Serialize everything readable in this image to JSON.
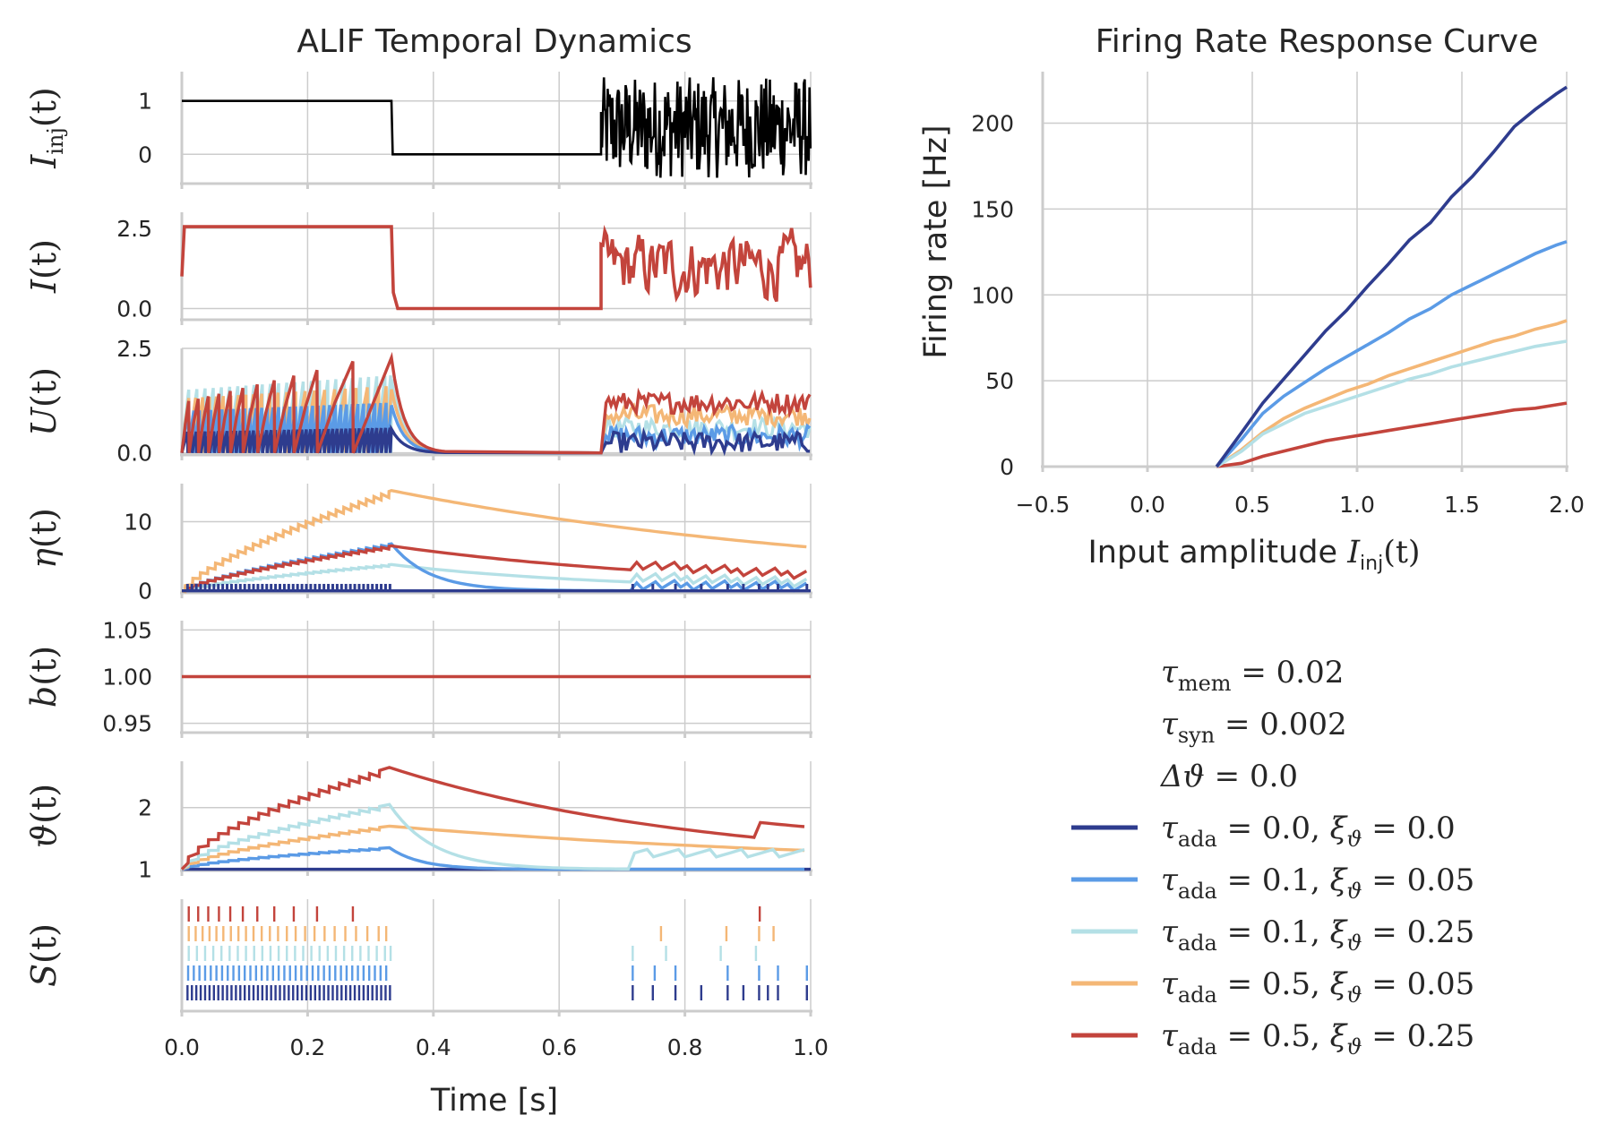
{
  "colors": {
    "c0": "#2e3c8e",
    "c1": "#5b9be6",
    "c2": "#b4e0e6",
    "c3": "#f4b776",
    "c4": "#c3443c",
    "input": "#000000",
    "grid": "#cccccc",
    "text": "#262626"
  },
  "chart_data": [
    {
      "type": "line",
      "title": "ALIF Temporal Dynamics",
      "xlabel": "Time [s]",
      "xlim": [
        0.0,
        1.0
      ],
      "xticks": [
        "0.0",
        "0.2",
        "0.4",
        "0.6",
        "0.8",
        "1.0"
      ],
      "panels": [
        {
          "ylabel": "I_inj(t)",
          "ylabel_main": "I",
          "ylabel_sub": "inj",
          "ylabel_tail": "(t)",
          "ylim": [
            -0.55,
            1.55
          ],
          "yticks": [
            1,
            0
          ],
          "ytick_labels": [
            "1",
            "0"
          ],
          "description": "step input 1 for t<1/3, 0 until 2/3, then noisy input"
        },
        {
          "ylabel": "I(t)",
          "ylabel_main": "I",
          "ylabel_sub": "",
          "ylabel_tail": "(t)",
          "ylim": [
            -0.35,
            3.0
          ],
          "yticks": [
            2.5,
            0.0
          ],
          "ytick_labels": [
            "2.5",
            "0.0"
          ],
          "description": "synaptic current following the input"
        },
        {
          "ylabel": "U(t)",
          "ylabel_main": "U",
          "ylabel_sub": "",
          "ylabel_tail": "(t)",
          "ylim": [
            -0.05,
            2.5
          ],
          "yticks": [
            2.5,
            0.0
          ],
          "ytick_labels": [
            "2.5",
            "0.0"
          ],
          "description": "membrane potential traces"
        },
        {
          "ylabel": "η(t)",
          "ylabel_main": "η",
          "ylabel_sub": "",
          "ylabel_tail": "(t)",
          "ylim": [
            -0.3,
            15.5
          ],
          "yticks": [
            10,
            0
          ],
          "ytick_labels": [
            "10",
            "0"
          ],
          "description": "adaptation variable traces"
        },
        {
          "ylabel": "b(t)",
          "ylabel_main": "b",
          "ylabel_sub": "",
          "ylabel_tail": "(t)",
          "ylim": [
            0.94,
            1.06
          ],
          "yticks": [
            1.05,
            1.0,
            0.95
          ],
          "ytick_labels": [
            "1.05",
            "1.00",
            "0.95"
          ],
          "description": "constant 1.00"
        },
        {
          "ylabel": "ϑ(t)",
          "ylabel_main": "ϑ",
          "ylabel_sub": "",
          "ylabel_tail": "(t)",
          "ylim": [
            0.98,
            2.75
          ],
          "yticks": [
            2,
            1
          ],
          "ytick_labels": [
            "2",
            "1"
          ],
          "description": "adaptive threshold traces"
        },
        {
          "ylabel": "S(t)",
          "ylabel_main": "S",
          "ylabel_sub": "",
          "ylabel_tail": "(t)",
          "yticks": [],
          "ytick_labels": [],
          "description": "spike raster, one row per configuration"
        }
      ],
      "spikes": [
        {
          "name": "c0",
          "times": [
            0.009,
            0.016,
            0.023,
            0.03,
            0.037,
            0.044,
            0.051,
            0.058,
            0.065,
            0.072,
            0.079,
            0.086,
            0.093,
            0.1,
            0.107,
            0.114,
            0.121,
            0.128,
            0.135,
            0.142,
            0.149,
            0.156,
            0.163,
            0.17,
            0.177,
            0.184,
            0.191,
            0.198,
            0.205,
            0.212,
            0.219,
            0.226,
            0.233,
            0.24,
            0.247,
            0.254,
            0.261,
            0.268,
            0.275,
            0.282,
            0.289,
            0.296,
            0.303,
            0.31,
            0.317,
            0.324,
            0.331,
            0.717,
            0.749,
            0.785,
            0.826,
            0.868,
            0.893,
            0.918,
            0.932,
            0.948,
            0.994
          ]
        },
        {
          "name": "c1",
          "times": [
            0.01,
            0.019,
            0.028,
            0.037,
            0.046,
            0.055,
            0.064,
            0.073,
            0.082,
            0.091,
            0.1,
            0.109,
            0.118,
            0.127,
            0.136,
            0.145,
            0.154,
            0.163,
            0.172,
            0.181,
            0.19,
            0.199,
            0.208,
            0.217,
            0.226,
            0.235,
            0.244,
            0.253,
            0.262,
            0.271,
            0.28,
            0.289,
            0.298,
            0.307,
            0.316,
            0.325,
            0.717,
            0.752,
            0.785,
            0.868,
            0.918,
            0.948,
            0.994
          ]
        },
        {
          "name": "c2",
          "times": [
            0.011,
            0.024,
            0.037,
            0.05,
            0.063,
            0.076,
            0.089,
            0.102,
            0.115,
            0.128,
            0.141,
            0.154,
            0.167,
            0.18,
            0.193,
            0.206,
            0.219,
            0.232,
            0.245,
            0.258,
            0.271,
            0.284,
            0.297,
            0.31,
            0.323,
            0.332,
            0.717,
            0.77,
            0.857,
            0.913
          ]
        },
        {
          "name": "c3",
          "times": [
            0.011,
            0.022,
            0.033,
            0.044,
            0.055,
            0.066,
            0.078,
            0.09,
            0.102,
            0.114,
            0.127,
            0.14,
            0.153,
            0.167,
            0.181,
            0.196,
            0.211,
            0.227,
            0.243,
            0.26,
            0.277,
            0.295,
            0.313,
            0.325,
            0.762,
            0.866,
            0.918,
            0.941
          ]
        },
        {
          "name": "c4",
          "times": [
            0.011,
            0.026,
            0.042,
            0.059,
            0.077,
            0.097,
            0.12,
            0.147,
            0.178,
            0.215,
            0.272,
            0.919
          ]
        }
      ],
      "input_steps": [
        {
          "t_start": 0.0,
          "t_end": 0.333,
          "value": 1
        },
        {
          "t_start": 0.333,
          "t_end": 0.667,
          "value": 0
        },
        {
          "t_start": 0.667,
          "t_end": 1.0,
          "value": "noise (range -0.45 to 1.45)"
        }
      ],
      "b_value": 1.0
    },
    {
      "type": "line",
      "title": "Firing Rate Response Curve",
      "xlabel_main": "Input amplitude ",
      "xlabel_var": "I",
      "xlabel_sub": "inj",
      "xlabel_tail": "(t)",
      "ylabel": "Firing rate [Hz]",
      "xlim": [
        -0.5,
        2.0
      ],
      "ylim": [
        0,
        230
      ],
      "xticks": [
        -0.5,
        0.0,
        0.5,
        1.0,
        1.5,
        2.0
      ],
      "xtick_labels": [
        "−0.5",
        "0.0",
        "0.5",
        "1.0",
        "1.5",
        "2.0"
      ],
      "yticks": [
        0,
        50,
        100,
        150,
        200
      ],
      "ytick_labels": [
        "0",
        "50",
        "100",
        "150",
        "200"
      ],
      "x": [
        0.33,
        0.45,
        0.55,
        0.65,
        0.75,
        0.85,
        0.95,
        1.05,
        1.15,
        1.25,
        1.35,
        1.45,
        1.55,
        1.65,
        1.75,
        1.85,
        1.95,
        2.0
      ],
      "series": [
        {
          "name": "τ_ada = 0.0, ξ_ϑ = 0.0",
          "color_key": "c0",
          "values": [
            0,
            20,
            37,
            51,
            65,
            79,
            91,
            105,
            118,
            132,
            142,
            157,
            169,
            183,
            198,
            208,
            217,
            221
          ]
        },
        {
          "name": "τ_ada = 0.1, ξ_ϑ = 0.05",
          "color_key": "c1",
          "values": [
            0,
            16,
            31,
            41,
            49,
            57,
            64,
            71,
            78,
            86,
            92,
            100,
            106,
            112,
            118,
            124,
            129,
            131
          ]
        },
        {
          "name": "τ_ada = 0.1, ξ_ϑ = 0.25",
          "color_key": "c2",
          "values": [
            0,
            9,
            19,
            25,
            31,
            35,
            39,
            43,
            47,
            51,
            54,
            58,
            61,
            64,
            67,
            70,
            72,
            73
          ]
        },
        {
          "name": "τ_ada = 0.5, ξ_ϑ = 0.05",
          "color_key": "c3",
          "values": [
            0,
            10,
            20,
            28,
            34,
            39,
            44,
            48,
            53,
            57,
            61,
            65,
            69,
            73,
            76,
            80,
            83,
            85
          ]
        },
        {
          "name": "τ_ada = 0.5, ξ_ϑ = 0.25",
          "color_key": "c4",
          "values": [
            0,
            2,
            6,
            9,
            12,
            15,
            17,
            19,
            21,
            23,
            25,
            27,
            29,
            31,
            33,
            34,
            36,
            37
          ]
        }
      ]
    }
  ],
  "legend": {
    "params": [
      {
        "sym": "τ",
        "sub": "mem",
        "rest": " = 0.02"
      },
      {
        "sym": "τ",
        "sub": "syn",
        "rest": " = 0.002"
      },
      {
        "sym": "Δϑ",
        "sub": "",
        "rest": " = 0.0"
      }
    ],
    "entries": [
      {
        "color_key": "c0",
        "tau": "0.0",
        "xi": "0.0"
      },
      {
        "color_key": "c1",
        "tau": "0.1",
        "xi": "0.05"
      },
      {
        "color_key": "c2",
        "tau": "0.1",
        "xi": "0.25"
      },
      {
        "color_key": "c3",
        "tau": "0.5",
        "xi": "0.05"
      },
      {
        "color_key": "c4",
        "tau": "0.5",
        "xi": "0.25"
      }
    ],
    "tau_sym": "τ",
    "tau_sub": "ada",
    "xi_sym": "ξ",
    "xi_sub": "ϑ",
    "eq": " = ",
    "sep": ", "
  }
}
